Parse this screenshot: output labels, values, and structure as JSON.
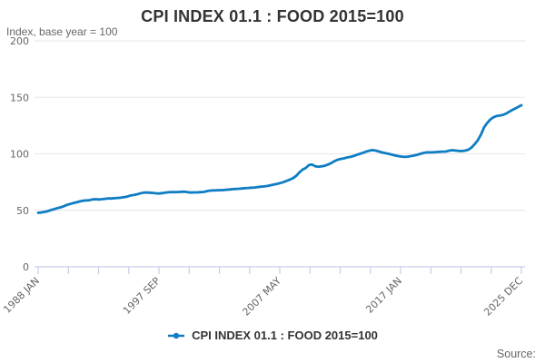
{
  "title": "CPI INDEX 01.1 : FOOD 2015=100",
  "subtitle": "Index, base year = 100",
  "source_label": "Source:",
  "legend": {
    "label": "CPI INDEX 01.1 : FOOD 2015=100"
  },
  "colors": {
    "line": "#0f7dc3",
    "grid": "#e6e6e6",
    "axis": "#c5cfe6",
    "tick_text": "#666666",
    "title_text": "#333333"
  },
  "chart_data": {
    "type": "line",
    "title": "CPI INDEX 01.1 : FOOD 2015=100",
    "ylabel": "Index, base year = 100",
    "ylim": [
      0,
      200
    ],
    "yticks": [
      0,
      50,
      100,
      150,
      200
    ],
    "ytick_labels": [
      "0",
      "50",
      "100",
      "150",
      "200"
    ],
    "xticks": [
      "1988 JAN",
      "1997 SEP",
      "2007 MAY",
      "2017 JAN",
      "2025 DEC"
    ],
    "x_range_years": [
      1988.0,
      2025.92
    ],
    "grid": true,
    "legend_position": "bottom",
    "series": [
      {
        "name": "CPI INDEX 01.1 : FOOD 2015=100",
        "points": [
          [
            1988.0,
            47.8
          ],
          [
            1988.25,
            48.1
          ],
          [
            1988.5,
            48.6
          ],
          [
            1988.75,
            49.2
          ],
          [
            1989.0,
            50.2
          ],
          [
            1989.25,
            51.0
          ],
          [
            1989.5,
            51.9
          ],
          [
            1989.75,
            52.6
          ],
          [
            1990.0,
            53.6
          ],
          [
            1990.25,
            54.8
          ],
          [
            1990.5,
            55.6
          ],
          [
            1990.75,
            56.4
          ],
          [
            1991.0,
            57.0
          ],
          [
            1991.25,
            57.8
          ],
          [
            1991.5,
            58.5
          ],
          [
            1991.75,
            58.7
          ],
          [
            1992.0,
            58.9
          ],
          [
            1992.25,
            59.6
          ],
          [
            1992.5,
            59.8
          ],
          [
            1992.75,
            59.6
          ],
          [
            1993.0,
            59.8
          ],
          [
            1993.25,
            60.2
          ],
          [
            1993.5,
            60.6
          ],
          [
            1993.75,
            60.5
          ],
          [
            1994.0,
            60.7
          ],
          [
            1994.25,
            61.0
          ],
          [
            1994.5,
            61.2
          ],
          [
            1994.75,
            61.7
          ],
          [
            1995.0,
            62.2
          ],
          [
            1995.25,
            63.1
          ],
          [
            1995.5,
            63.5
          ],
          [
            1995.75,
            64.2
          ],
          [
            1996.0,
            64.9
          ],
          [
            1996.25,
            65.6
          ],
          [
            1996.5,
            65.8
          ],
          [
            1996.75,
            65.6
          ],
          [
            1997.0,
            65.4
          ],
          [
            1997.25,
            65.1
          ],
          [
            1997.5,
            64.9
          ],
          [
            1997.75,
            65.2
          ],
          [
            1998.0,
            65.6
          ],
          [
            1998.25,
            66.0
          ],
          [
            1998.5,
            66.2
          ],
          [
            1998.75,
            66.1
          ],
          [
            1999.0,
            66.2
          ],
          [
            1999.25,
            66.4
          ],
          [
            1999.5,
            66.4
          ],
          [
            1999.75,
            66.0
          ],
          [
            2000.0,
            65.7
          ],
          [
            2000.25,
            65.9
          ],
          [
            2000.5,
            65.9
          ],
          [
            2000.75,
            66.1
          ],
          [
            2001.0,
            66.3
          ],
          [
            2001.25,
            67.0
          ],
          [
            2001.5,
            67.5
          ],
          [
            2001.75,
            67.6
          ],
          [
            2002.0,
            67.7
          ],
          [
            2002.25,
            67.9
          ],
          [
            2002.5,
            67.9
          ],
          [
            2002.75,
            68.2
          ],
          [
            2003.0,
            68.4
          ],
          [
            2003.25,
            68.7
          ],
          [
            2003.5,
            68.9
          ],
          [
            2003.75,
            69.1
          ],
          [
            2004.0,
            69.3
          ],
          [
            2004.25,
            69.6
          ],
          [
            2004.5,
            69.8
          ],
          [
            2004.75,
            70.0
          ],
          [
            2005.0,
            70.2
          ],
          [
            2005.25,
            70.6
          ],
          [
            2005.5,
            70.9
          ],
          [
            2005.75,
            71.2
          ],
          [
            2006.0,
            71.6
          ],
          [
            2006.25,
            72.2
          ],
          [
            2006.5,
            72.8
          ],
          [
            2006.75,
            73.4
          ],
          [
            2007.0,
            74.1
          ],
          [
            2007.25,
            74.9
          ],
          [
            2007.5,
            76.1
          ],
          [
            2007.75,
            77.2
          ],
          [
            2008.0,
            78.5
          ],
          [
            2008.25,
            80.5
          ],
          [
            2008.5,
            83.5
          ],
          [
            2008.75,
            86.0
          ],
          [
            2009.0,
            87.5
          ],
          [
            2009.25,
            90.0
          ],
          [
            2009.5,
            90.5
          ],
          [
            2009.75,
            89.0
          ],
          [
            2010.0,
            88.5
          ],
          [
            2010.25,
            89.0
          ],
          [
            2010.5,
            89.5
          ],
          [
            2010.75,
            90.5
          ],
          [
            2011.0,
            91.8
          ],
          [
            2011.25,
            93.5
          ],
          [
            2011.5,
            94.8
          ],
          [
            2011.75,
            95.5
          ],
          [
            2012.0,
            96.0
          ],
          [
            2012.25,
            96.8
          ],
          [
            2012.5,
            97.3
          ],
          [
            2012.75,
            98.1
          ],
          [
            2013.0,
            99.0
          ],
          [
            2013.25,
            100.0
          ],
          [
            2013.5,
            101.0
          ],
          [
            2013.75,
            102.0
          ],
          [
            2014.0,
            102.8
          ],
          [
            2014.25,
            103.3
          ],
          [
            2014.5,
            102.8
          ],
          [
            2014.75,
            102.0
          ],
          [
            2015.0,
            101.2
          ],
          [
            2015.25,
            100.6
          ],
          [
            2015.5,
            100.0
          ],
          [
            2015.75,
            99.3
          ],
          [
            2016.0,
            98.6
          ],
          [
            2016.25,
            98.0
          ],
          [
            2016.5,
            97.6
          ],
          [
            2016.75,
            97.3
          ],
          [
            2017.0,
            97.5
          ],
          [
            2017.25,
            98.0
          ],
          [
            2017.5,
            98.5
          ],
          [
            2017.75,
            99.2
          ],
          [
            2018.0,
            100.0
          ],
          [
            2018.25,
            100.8
          ],
          [
            2018.5,
            101.3
          ],
          [
            2018.75,
            101.3
          ],
          [
            2019.0,
            101.3
          ],
          [
            2019.25,
            101.6
          ],
          [
            2019.5,
            101.8
          ],
          [
            2019.75,
            101.9
          ],
          [
            2020.0,
            102.0
          ],
          [
            2020.25,
            102.8
          ],
          [
            2020.5,
            103.2
          ],
          [
            2020.75,
            102.9
          ],
          [
            2021.0,
            102.6
          ],
          [
            2021.25,
            102.4
          ],
          [
            2021.5,
            102.8
          ],
          [
            2021.75,
            103.6
          ],
          [
            2022.0,
            105.5
          ],
          [
            2022.25,
            108.5
          ],
          [
            2022.5,
            112.0
          ],
          [
            2022.75,
            117.0
          ],
          [
            2023.0,
            123.5
          ],
          [
            2023.25,
            127.5
          ],
          [
            2023.5,
            130.5
          ],
          [
            2023.75,
            132.5
          ],
          [
            2024.0,
            133.5
          ],
          [
            2024.25,
            134.0
          ],
          [
            2024.5,
            134.5
          ],
          [
            2024.75,
            135.8
          ],
          [
            2025.0,
            137.5
          ],
          [
            2025.25,
            139.0
          ],
          [
            2025.5,
            140.5
          ],
          [
            2025.75,
            142.0
          ],
          [
            2025.92,
            143.0
          ]
        ]
      }
    ]
  }
}
